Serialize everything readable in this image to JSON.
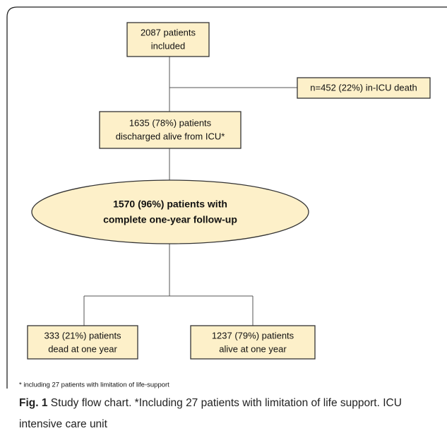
{
  "nodes": [
    {
      "lines": [
        "2087 patients",
        "included"
      ]
    },
    {
      "lines": [
        "n=452 (22%) in-ICU death"
      ]
    },
    {
      "lines": [
        "1635 (78%) patients",
        "discharged alive from ICU*"
      ]
    },
    {
      "lines": [
        "1570 (96%) patients with",
        "complete one-year follow-up"
      ]
    },
    {
      "lines": [
        "333 (21%) patients",
        "dead at one year"
      ]
    },
    {
      "lines": [
        "1237 (79%) patients",
        "alive at one year"
      ]
    }
  ],
  "footnote": "* including 27 patients with limitation of life-support",
  "caption": {
    "label": "Fig. 1",
    "text": "Study flow chart. *Including 27 patients with limitation of life support. ICU intensive care unit"
  }
}
